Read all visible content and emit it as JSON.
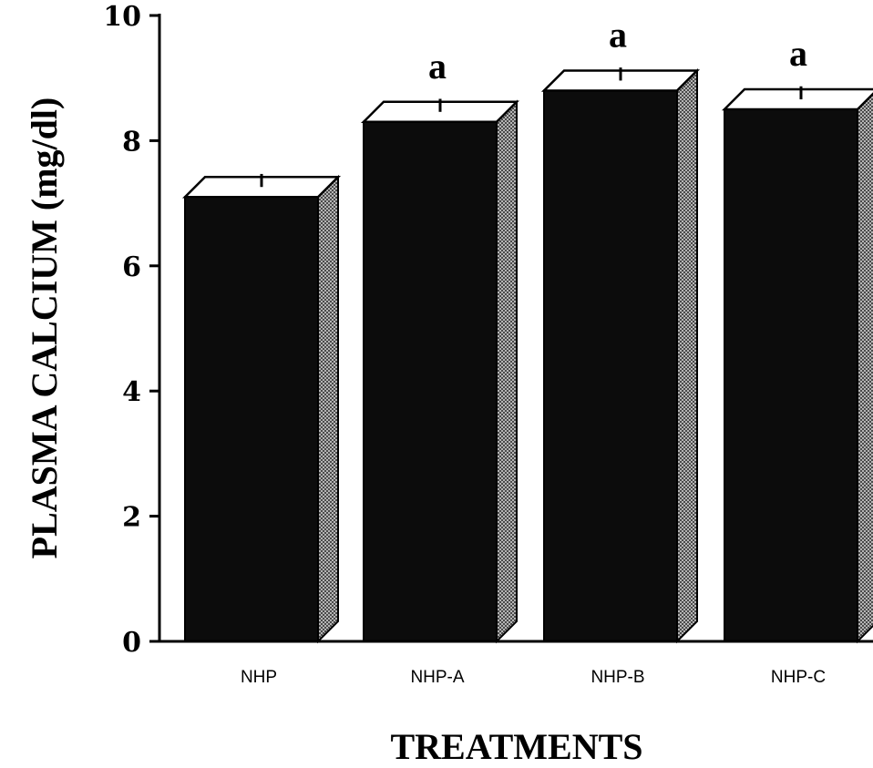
{
  "chart_data": {
    "type": "bar",
    "style": "3d",
    "categories": [
      "NHP",
      "NHP-A",
      "NHP-B",
      "NHP-C"
    ],
    "values": [
      7.1,
      8.3,
      8.8,
      8.5
    ],
    "errors": [
      0.15,
      0.15,
      0.15,
      0.15
    ],
    "annotations": [
      "",
      "a",
      "a",
      "a"
    ],
    "title": "",
    "xlabel": "TREATMENTS",
    "ylabel": "PLASMA CALCIUM (mg/dl)",
    "ylim": [
      0,
      10
    ],
    "yticks": [
      0,
      2,
      4,
      6,
      8,
      10
    ],
    "ytick_labels": [
      "0",
      "2",
      "4",
      "6",
      "8",
      "10"
    ],
    "grid": false,
    "colors": {
      "bar": "#0c0c0c",
      "top": "#ffffff",
      "side": "#9a9a9a"
    }
  }
}
